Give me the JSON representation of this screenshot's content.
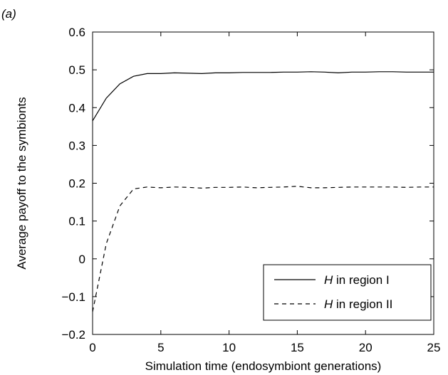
{
  "panel_label": "(a)",
  "chart_data": {
    "type": "line",
    "xlabel": "Simulation time (endosymbiont generations)",
    "ylabel": "Average payoff to the symbionts",
    "xlim": [
      0,
      25
    ],
    "ylim": [
      -0.2,
      0.6
    ],
    "xticks": [
      0,
      5,
      10,
      15,
      20,
      25
    ],
    "yticks": [
      -0.2,
      -0.1,
      0,
      0.1,
      0.2,
      0.3,
      0.4,
      0.5,
      0.6
    ],
    "xtick_labels": [
      "0",
      "5",
      "10",
      "15",
      "20",
      "25"
    ],
    "ytick_labels": [
      "−0.2",
      "−0.1",
      "0",
      "0.1",
      "0.2",
      "0.3",
      "0.4",
      "0.5",
      "0.6"
    ],
    "grid": false,
    "legend_position": "bottom-right",
    "series": [
      {
        "name_italic": "H",
        "name_rest": " in region I",
        "style": "solid",
        "color": "#000000",
        "x": [
          0,
          1,
          2,
          3,
          4,
          5,
          6,
          7,
          8,
          9,
          10,
          11,
          12,
          13,
          14,
          15,
          16,
          17,
          18,
          19,
          20,
          21,
          22,
          23,
          24,
          25
        ],
        "y": [
          0.365,
          0.425,
          0.463,
          0.483,
          0.49,
          0.49,
          0.492,
          0.491,
          0.49,
          0.492,
          0.492,
          0.493,
          0.493,
          0.493,
          0.494,
          0.494,
          0.495,
          0.494,
          0.492,
          0.494,
          0.494,
          0.495,
          0.495,
          0.494,
          0.494,
          0.494
        ]
      },
      {
        "name_italic": "H",
        "name_rest": " in region II",
        "style": "dashed",
        "color": "#000000",
        "x": [
          0,
          1,
          2,
          3,
          4,
          5,
          6,
          7,
          8,
          9,
          10,
          11,
          12,
          13,
          14,
          15,
          16,
          17,
          18,
          19,
          20,
          21,
          22,
          23,
          24,
          25
        ],
        "y": [
          -0.14,
          0.04,
          0.14,
          0.185,
          0.19,
          0.188,
          0.19,
          0.189,
          0.187,
          0.189,
          0.189,
          0.19,
          0.188,
          0.189,
          0.19,
          0.192,
          0.188,
          0.188,
          0.189,
          0.19,
          0.19,
          0.19,
          0.19,
          0.189,
          0.19,
          0.19
        ]
      }
    ]
  }
}
